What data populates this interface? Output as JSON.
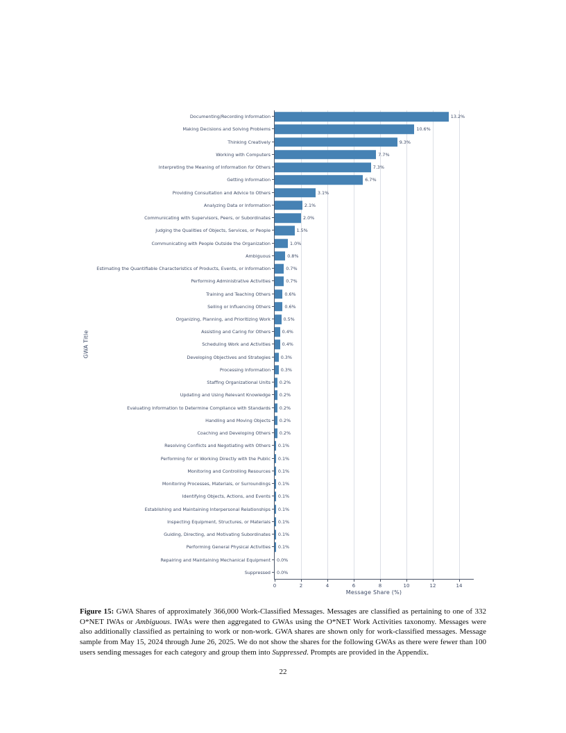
{
  "page": {
    "page_number": "22"
  },
  "figure": {
    "caption_segments": [
      {
        "style": "bold",
        "text": "Figure 15:"
      },
      {
        "style": "normal",
        "text": " GWA Shares of approximately 366,000 Work-Classified Messages. Messages are classified as pertaining to one of 332 O*NET IWAs or "
      },
      {
        "style": "italic",
        "text": "Ambiguous"
      },
      {
        "style": "normal",
        "text": ". IWAs were then aggregated to GWAs using the O*NET Work Activities taxonomy. Messages were also additionally classified as pertaining to work or non-work. GWA shares are shown only for work-classified messages. Message sample from May 15, 2024 through June 26, 2025. We do not show the shares for the following GWAs as there were fewer than 100 users sending messages for each category and group them into "
      },
      {
        "style": "italic",
        "text": "Suppressed"
      },
      {
        "style": "normal",
        "text": ". Prompts are provided in the Appendix."
      }
    ]
  },
  "chart_data": {
    "type": "bar",
    "orientation": "horizontal",
    "title": "",
    "xlabel": "Message Share (%)",
    "ylabel": "GWA Title",
    "xlim": [
      0,
      15.1
    ],
    "xticks": [
      0,
      2,
      4,
      6,
      8,
      10,
      12,
      14
    ],
    "grid": "vertical",
    "legend": "none",
    "bar_color": "#4682b4",
    "text_color": "#3d4a66",
    "categories": [
      "Documenting/Recording Information",
      "Making Decisions and Solving Problems",
      "Thinking Creatively",
      "Working with Computers",
      "Interpreting the Meaning of Information for Others",
      "Getting Information",
      "Providing Consultation and Advice to Others",
      "Analyzing Data or Information",
      "Communicating with Supervisors, Peers, or Subordinates",
      "Judging the Qualities of Objects, Services, or People",
      "Communicating with People Outside the Organization",
      "Ambiguous",
      "Estimating the Quantifiable Characteristics of Products, Events, or Information",
      "Performing Administrative Activities",
      "Training and Teaching Others",
      "Selling or Influencing Others",
      "Organizing, Planning, and Prioritizing Work",
      "Assisting and Caring for Others",
      "Scheduling Work and Activities",
      "Developing Objectives and Strategies",
      "Processing Information",
      "Staffing Organizational Units",
      "Updating and Using Relevant Knowledge",
      "Evaluating Information to Determine Compliance with Standards",
      "Handling and Moving Objects",
      "Coaching and Developing Others",
      "Resolving Conflicts and Negotiating with Others",
      "Performing for or Working Directly with the Public",
      "Monitoring and Controlling Resources",
      "Monitoring Processes, Materials, or Surroundings",
      "Identifying Objects, Actions, and Events",
      "Establishing and Maintaining Interpersonal Relationships",
      "Inspecting Equipment, Structures, or Materials",
      "Guiding, Directing, and Motivating Subordinates",
      "Performing General Physical Activities",
      "Repairing and Maintaining Mechanical Equipment",
      "Suppressed"
    ],
    "values": [
      13.2,
      10.6,
      9.3,
      7.7,
      7.3,
      6.7,
      3.1,
      2.1,
      2.0,
      1.5,
      1.0,
      0.8,
      0.7,
      0.7,
      0.6,
      0.6,
      0.5,
      0.4,
      0.4,
      0.3,
      0.3,
      0.2,
      0.2,
      0.2,
      0.2,
      0.2,
      0.1,
      0.1,
      0.1,
      0.1,
      0.1,
      0.1,
      0.1,
      0.1,
      0.1,
      0.0,
      0.0
    ]
  }
}
